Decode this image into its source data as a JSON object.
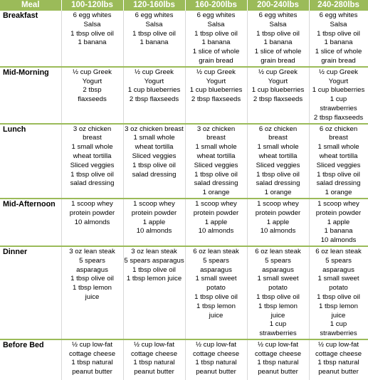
{
  "header": {
    "meal": "Meal",
    "weights": [
      "100-120lbs",
      "120-160lbs",
      "160-200lbs",
      "200-240lbs",
      "240-280lbs"
    ]
  },
  "rows": [
    {
      "meal": "Breakfast",
      "cells": [
        [
          "6 egg whites",
          "Salsa",
          "1 tbsp olive oil",
          "1 banana"
        ],
        [
          "6 egg whites",
          "Salsa",
          "1 tbsp olive oil",
          "1 banana"
        ],
        [
          "6 egg whites",
          "Salsa",
          "1 tbsp olive oil",
          "1 banana",
          "1 slice of whole",
          "grain bread"
        ],
        [
          "6 egg whites",
          "Salsa",
          "1 tbsp olive oil",
          "1 banana",
          "1 slice of whole",
          "grain bread"
        ],
        [
          "6 egg whites",
          "Salsa",
          "1 tbsp olive oil",
          "1 banana",
          "1 slice of whole",
          "grain bread"
        ]
      ]
    },
    {
      "meal": "Mid-Morning",
      "cells": [
        [
          "½ cup Greek",
          "Yogurt",
          "2 tbsp",
          "flaxseeds"
        ],
        [
          "½ cup Greek",
          "Yogurt",
          "1 cup blueberries",
          "2 tbsp flaxseeds"
        ],
        [
          "½ cup Greek",
          "Yogurt",
          "1 cup blueberries",
          "2 tbsp flaxseeds"
        ],
        [
          "½ cup Greek",
          "Yogurt",
          "1 cup blueberries",
          "2 tbsp flaxseeds"
        ],
        [
          "½ cup Greek",
          "Yogurt",
          "1 cup blueberries",
          "1 cup",
          "strawberries",
          "2 tbsp flaxseeds"
        ]
      ]
    },
    {
      "meal": "Lunch",
      "cells": [
        [
          "3 oz chicken",
          "breast",
          "1 small whole",
          "wheat tortilla",
          "Sliced veggies",
          "1 tbsp olive oil",
          "salad dressing"
        ],
        [
          "3 oz chicken breast",
          "1 small whole",
          "wheat tortilla",
          "Sliced veggies",
          "1 tbsp olive oil",
          "salad dressing"
        ],
        [
          "3 oz chicken",
          "breast",
          "1 small whole",
          "wheat tortilla",
          "Sliced veggies",
          "1 tbsp olive oil",
          "salad dressing",
          "1 orange"
        ],
        [
          "6 oz chicken",
          "breast",
          "1 small whole",
          "wheat tortilla",
          "Sliced veggies",
          "1 tbsp olive oil",
          "salad dressing",
          "1 orange"
        ],
        [
          "6 oz chicken",
          "breast",
          "1 small whole",
          "wheat tortilla",
          "Sliced veggies",
          "1 tbsp olive oil",
          "salad dressing",
          "1 orange"
        ]
      ]
    },
    {
      "meal": "Mid-Afternoon",
      "cells": [
        [
          "1 scoop whey",
          "protein powder",
          "10 almonds"
        ],
        [
          "1 scoop whey",
          "protein powder",
          "1 apple",
          "10 almonds"
        ],
        [
          "1 scoop whey",
          "protein powder",
          "1 apple",
          "10 almonds"
        ],
        [
          "1 scoop whey",
          "protein powder",
          "1 apple",
          "10 almonds"
        ],
        [
          "1 scoop whey",
          "protein powder",
          "1 apple",
          "1 banana",
          "10 almonds"
        ]
      ]
    },
    {
      "meal": "Dinner",
      "cells": [
        [
          "3 oz lean steak",
          "5 spears",
          "asparagus",
          "1 tbsp olive oil",
          "1 tbsp lemon",
          "juice"
        ],
        [
          "3 oz lean steak",
          "5 spears asparagus",
          "1 tbsp olive oil",
          "1 tbsp lemon juice"
        ],
        [
          "6 oz lean steak",
          "5 spears",
          "asparagus",
          "1 small sweet",
          "potato",
          "1 tbsp olive oil",
          "1 tbsp lemon",
          "juice"
        ],
        [
          "6 oz lean steak",
          "5 spears",
          "asparagus",
          "1 small sweet",
          "potato",
          "1 tbsp olive oil",
          "1 tbsp lemon",
          "juice",
          "1 cup",
          "strawberries"
        ],
        [
          "6 oz lean steak",
          "5 spears",
          "asparagus",
          "1 small sweet",
          "potato",
          "1 tbsp olive oil",
          "1 tbsp lemon",
          "juice",
          "1 cup",
          "strawberries"
        ]
      ]
    },
    {
      "meal": "Before Bed",
      "cells": [
        [
          "½ cup low-fat",
          "cottage cheese",
          "1 tbsp natural",
          "peanut butter"
        ],
        [
          "½ cup low-fat",
          "cottage cheese",
          "1 tbsp natural",
          "peanut butter"
        ],
        [
          "½ cup low-fat",
          "cottage cheese",
          "1 tbsp natural",
          "peanut butter"
        ],
        [
          "½ cup low-fat",
          "cottage cheese",
          "1 tbsp natural",
          "peanut butter"
        ],
        [
          "½ cup low-fat",
          "cottage cheese",
          "1 tbsp natural",
          "peanut butter"
        ]
      ]
    }
  ],
  "colors": {
    "header_background": "#9bbb59",
    "header_text": "#ffffff",
    "row_divider": "#9bbb59"
  }
}
